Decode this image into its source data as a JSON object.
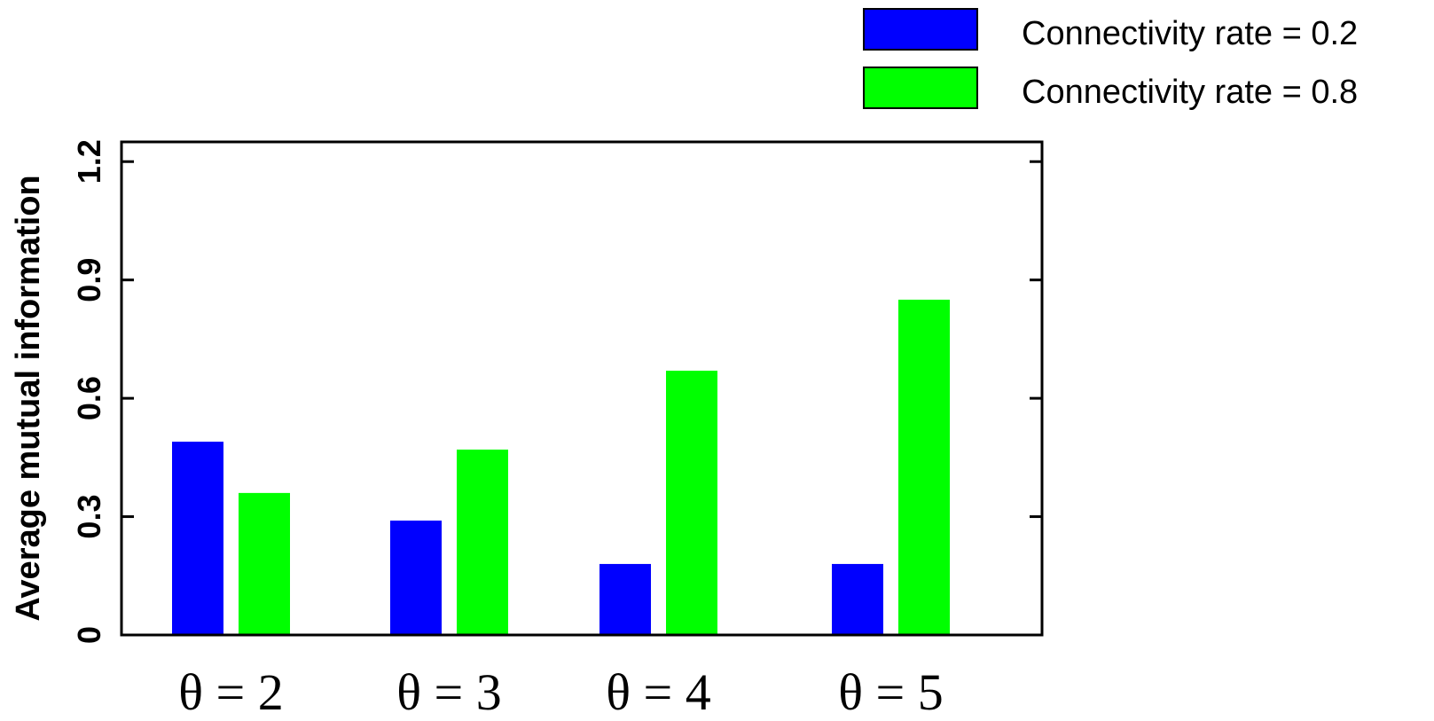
{
  "chart_data": {
    "type": "bar",
    "title": "",
    "xlabel": "",
    "ylabel": "Average mutual information",
    "categories": [
      "θ = 2",
      "θ = 3",
      "θ = 4",
      "θ = 5"
    ],
    "yticks": [
      "0",
      "0.3",
      "0.6",
      "0.9",
      "1.2"
    ],
    "ylim": [
      0,
      1.25
    ],
    "grid": false,
    "legend_position": "top-right",
    "series": [
      {
        "name": "Connectivity rate = 0.2",
        "color": "#0000FF",
        "values": [
          0.49,
          0.29,
          0.18,
          0.18
        ]
      },
      {
        "name": "Connectivity rate = 0.8",
        "color": "#00FF00",
        "values": [
          0.36,
          0.47,
          0.67,
          0.85
        ]
      }
    ]
  }
}
